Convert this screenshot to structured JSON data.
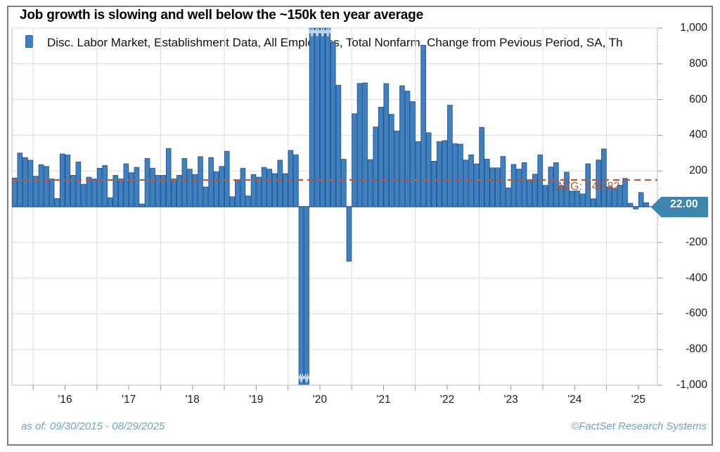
{
  "title": "Job growth is slowing and well below the ~150k ten year average",
  "legend": {
    "swatch_icon": "bar-series-swatch",
    "label": "Disc. Labor Market, Establishment Data, All Employees, Total Nonfarm, Change from Pevious Period, SA, Th"
  },
  "footer": {
    "as_of": "as of: 09/30/2015 - 08/29/2025",
    "source": "©FactSet Research Systems"
  },
  "colors": {
    "bar_fill": "#3F80C1",
    "bar_stroke": "#2B5C94",
    "grid": "#DCDCDC",
    "plot_border": "#C9C9C9",
    "zero_line": "#999999",
    "tick": "#999999",
    "avg_line": "#C0552F",
    "badge_fill": "#3E86AE",
    "badge_text": "#FFFFFF",
    "axis_text": "#1A1A1A",
    "footer_text": "#6FA3CB",
    "clip_break": "#BFD8EE"
  },
  "chart_data": {
    "type": "bar",
    "title": "Job growth is slowing and well below the ~150k ten year average",
    "series_name": "Disc. Labor Market, Establishment Data, All Employees, Total Nonfarm, Change from Pevious Period, SA, Thousands",
    "start_month": "2015-09",
    "end_month": "2025-08",
    "unit": "thousands of jobs, change from previous period, seasonally adjusted",
    "ylim": [
      -1000,
      1000
    ],
    "clip_note": "bars beyond +/-1000 are clipped with break marks",
    "grid": true,
    "legend_position": "top-left-inside",
    "x_year_labels": [
      "'16",
      "'17",
      "'18",
      "'19",
      "'20",
      "'21",
      "'22",
      "'23",
      "'24",
      "'25"
    ],
    "y_ticks": [
      [
        1000,
        "1,000"
      ],
      [
        800,
        "800"
      ],
      [
        600,
        "600"
      ],
      [
        400,
        "400"
      ],
      [
        200,
        "200"
      ],
      [
        -200,
        "-200"
      ],
      [
        -400,
        "-400"
      ],
      [
        -600,
        "-600"
      ],
      [
        -800,
        "-800"
      ],
      [
        -1000,
        "-1,000"
      ]
    ],
    "y_minor_step": 100,
    "average_line": {
      "label": "AVG: 149.82",
      "value": 149.82,
      "style": "dashed"
    },
    "last_value_badge": {
      "text": "22.00",
      "value": 22
    },
    "values": [
      160,
      300,
      275,
      260,
      170,
      235,
      225,
      155,
      45,
      295,
      290,
      175,
      250,
      125,
      165,
      155,
      215,
      230,
      50,
      175,
      155,
      240,
      190,
      220,
      15,
      270,
      215,
      175,
      175,
      325,
      155,
      175,
      270,
      210,
      180,
      280,
      110,
      275,
      195,
      225,
      310,
      55,
      150,
      215,
      60,
      180,
      165,
      220,
      210,
      185,
      260,
      185,
      315,
      290,
      -1373,
      -20477,
      2725,
      4781,
      1761,
      1493,
      920,
      680,
      265,
      -305,
      520,
      690,
      693,
      263,
      446,
      557,
      689,
      517,
      424,
      677,
      647,
      588,
      364,
      904,
      414,
      254,
      364,
      370,
      568,
      352,
      350,
      261,
      290,
      239,
      444,
      266,
      217,
      217,
      281,
      105,
      236,
      210,
      246,
      150,
      182,
      290,
      119,
      222,
      246,
      118,
      193,
      87,
      88,
      71,
      240,
      44,
      261,
      323,
      111,
      102,
      120,
      158,
      19,
      -13,
      79,
      22
    ]
  }
}
